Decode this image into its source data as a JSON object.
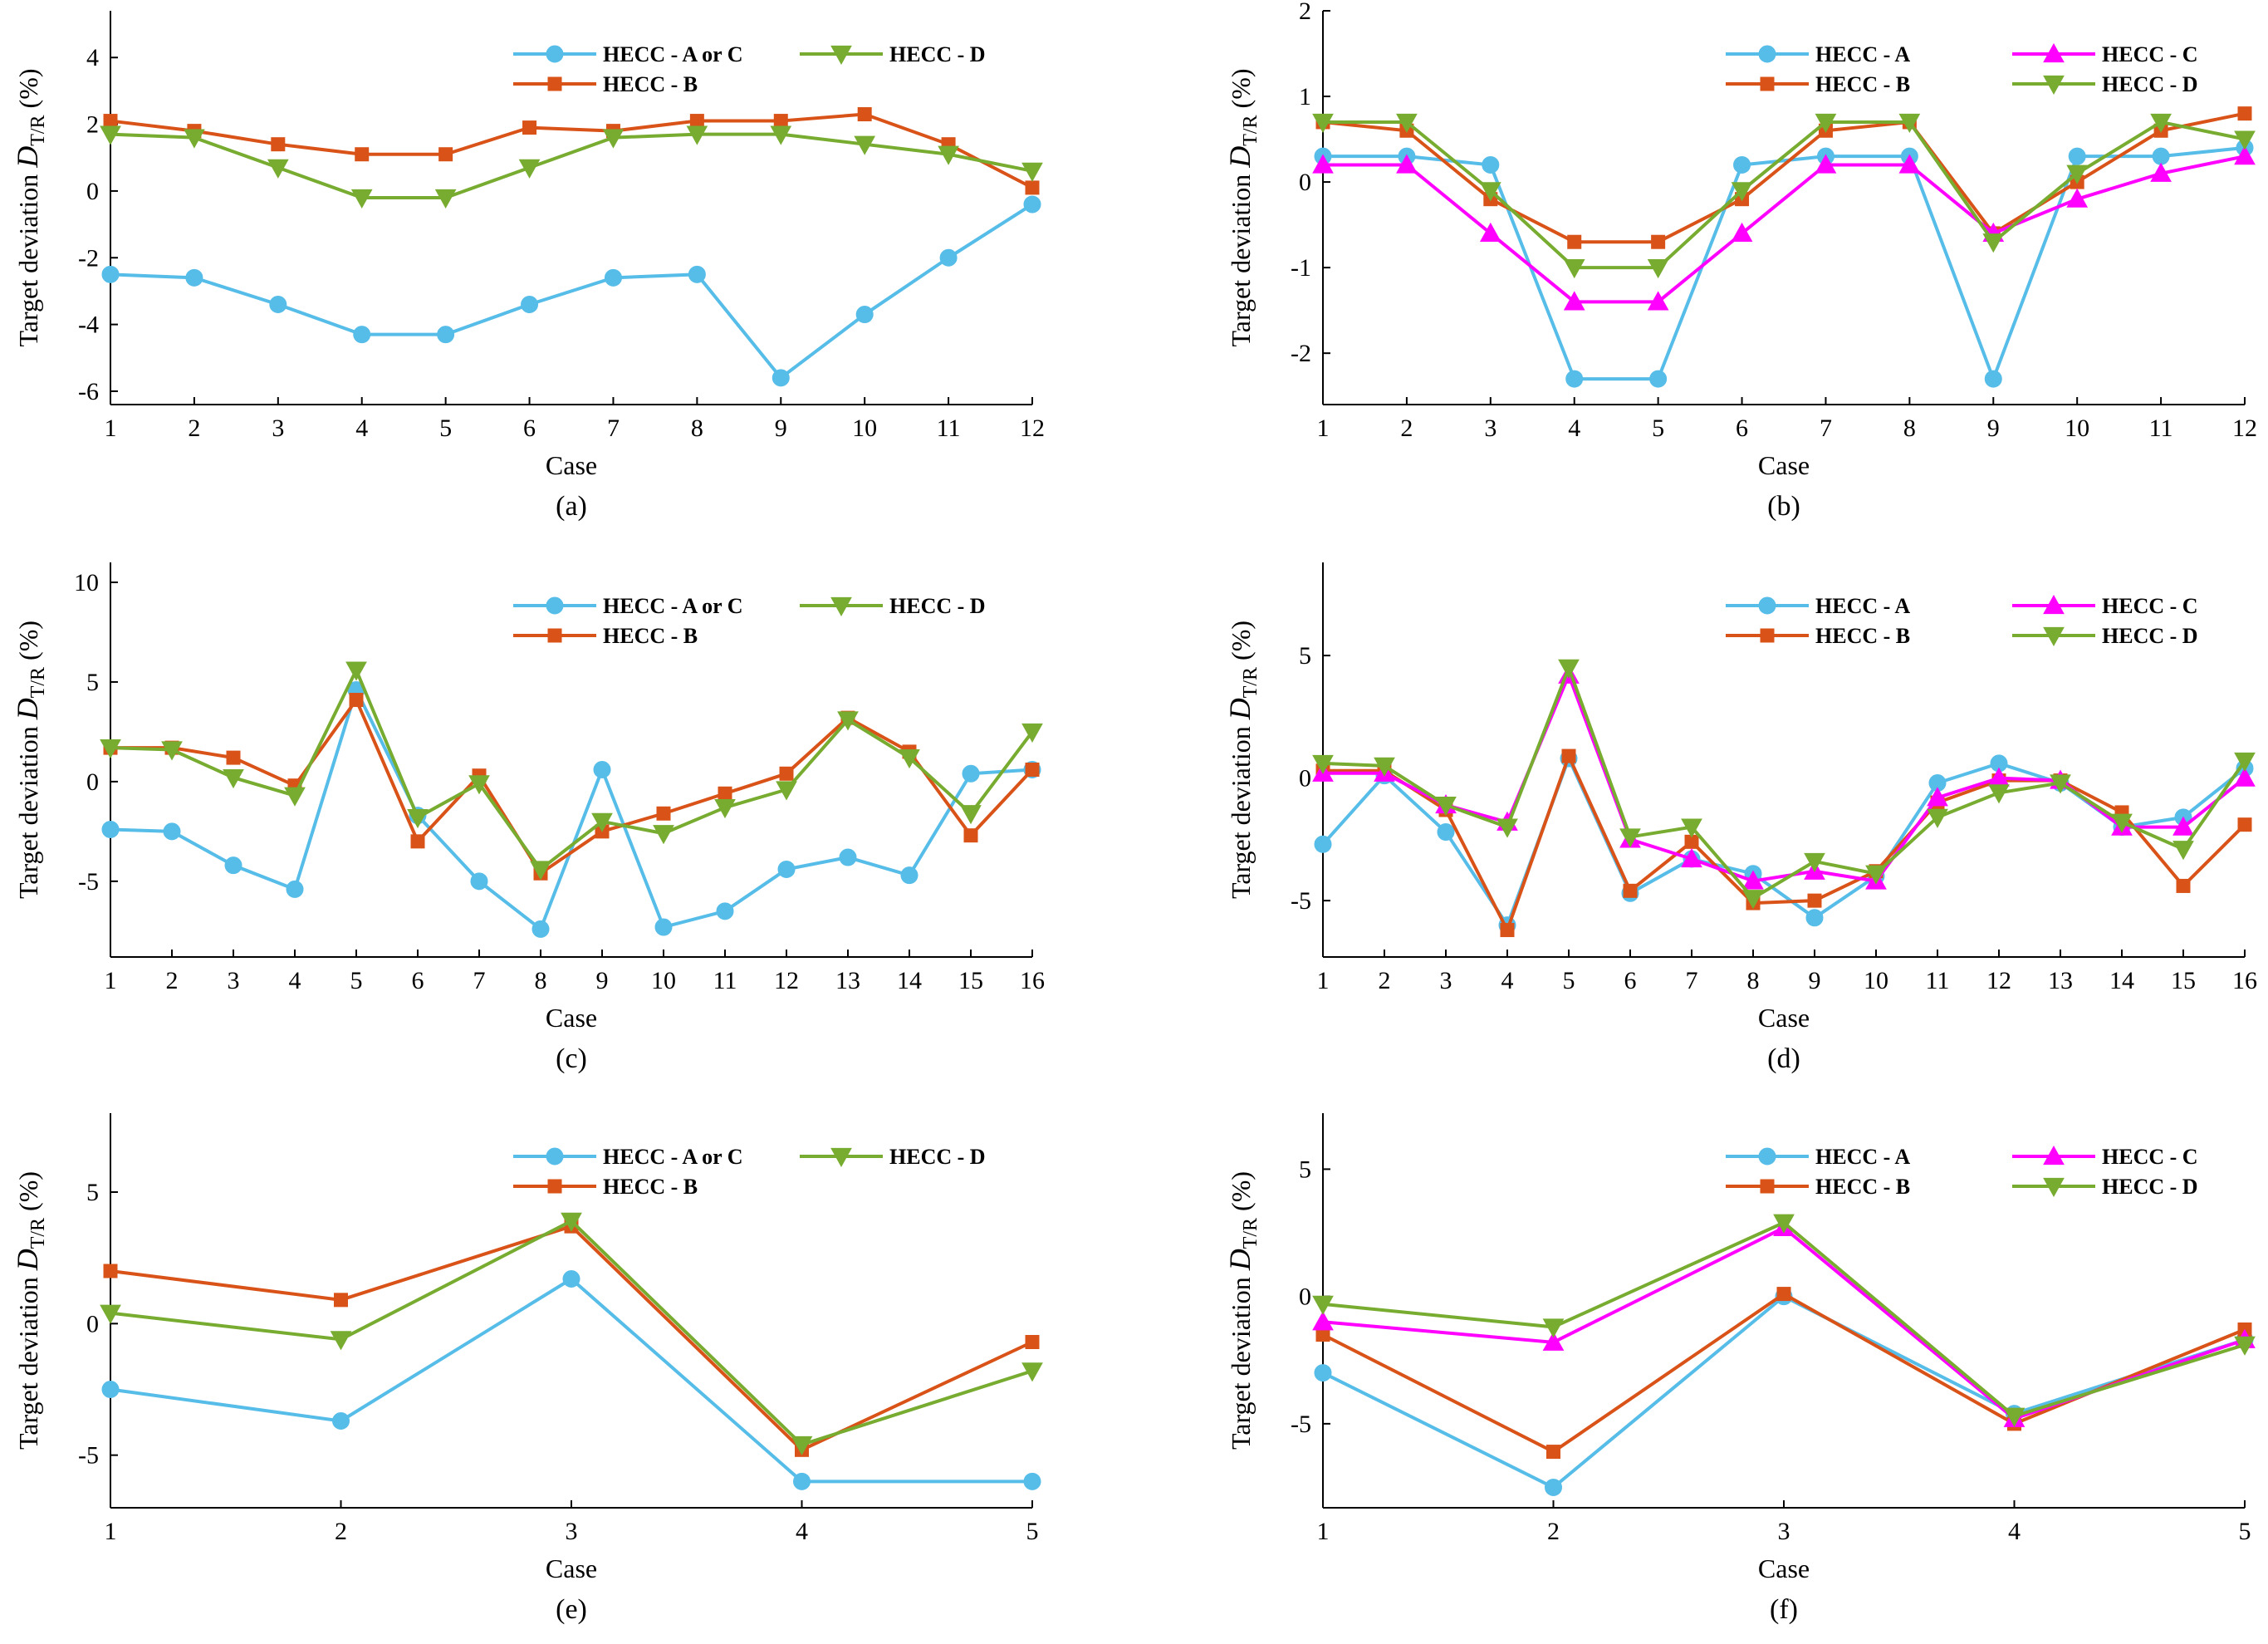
{
  "colors": {
    "A": "#56BCE8",
    "B": "#D95319",
    "C": "#FF00FF",
    "D": "#77AC30"
  },
  "ylabel_main": "Target deviation ",
  "ylabel_D": "D",
  "ylabel_sub": "T/R",
  "ylabel_unit": " (%)",
  "chart_data": [
    {
      "id": "a",
      "type": "line",
      "caption": "(a)",
      "xlabel": "Case",
      "categories": [
        "1",
        "2",
        "3",
        "4",
        "5",
        "6",
        "7",
        "8",
        "9",
        "10",
        "11",
        "12"
      ],
      "ylim": [
        -6.4,
        5.4
      ],
      "yticks": [
        -6,
        -4,
        -2,
        0,
        2,
        4
      ],
      "series": [
        {
          "name": "HECC - A or C",
          "key": "A",
          "marker": "circle",
          "values": [
            -2.5,
            -2.6,
            -3.4,
            -4.3,
            -4.3,
            -3.4,
            -2.6,
            -2.5,
            -5.6,
            -3.7,
            -2.0,
            -0.4
          ]
        },
        {
          "name": "HECC - B",
          "key": "B",
          "marker": "square",
          "values": [
            2.1,
            1.8,
            1.4,
            1.1,
            1.1,
            1.9,
            1.8,
            2.1,
            2.1,
            2.3,
            1.4,
            0.1
          ]
        },
        {
          "name": "HECC - D",
          "key": "D",
          "marker": "tri-down",
          "values": [
            1.7,
            1.6,
            0.7,
            -0.2,
            -0.2,
            0.7,
            1.6,
            1.7,
            1.7,
            1.4,
            1.1,
            0.6
          ]
        }
      ],
      "legend_rows": [
        [
          "HECC - A or C",
          "HECC - D"
        ],
        [
          "HECC - B"
        ]
      ]
    },
    {
      "id": "b",
      "type": "line",
      "caption": "(b)",
      "xlabel": "Case",
      "categories": [
        "1",
        "2",
        "3",
        "4",
        "5",
        "6",
        "7",
        "8",
        "9",
        "10",
        "11",
        "12"
      ],
      "ylim": [
        -2.6,
        2.0
      ],
      "yticks": [
        -2,
        -1,
        0,
        1,
        2
      ],
      "series": [
        {
          "name": "HECC - A",
          "key": "A",
          "marker": "circle",
          "values": [
            0.3,
            0.3,
            0.2,
            -2.3,
            -2.3,
            0.2,
            0.3,
            0.3,
            -2.3,
            0.3,
            0.3,
            0.4
          ]
        },
        {
          "name": "HECC - B",
          "key": "B",
          "marker": "square",
          "values": [
            0.7,
            0.6,
            -0.2,
            -0.7,
            -0.7,
            -0.2,
            0.6,
            0.7,
            -0.6,
            0.0,
            0.6,
            0.8
          ]
        },
        {
          "name": "HECC - C",
          "key": "C",
          "marker": "tri-up",
          "values": [
            0.2,
            0.2,
            -0.6,
            -1.4,
            -1.4,
            -0.6,
            0.2,
            0.2,
            -0.6,
            -0.2,
            0.1,
            0.3
          ]
        },
        {
          "name": "HECC - D",
          "key": "D",
          "marker": "tri-down",
          "values": [
            0.7,
            0.7,
            -0.1,
            -1.0,
            -1.0,
            -0.1,
            0.7,
            0.7,
            -0.7,
            0.1,
            0.7,
            0.5
          ]
        }
      ],
      "legend_rows": [
        [
          "HECC - A",
          "HECC - C"
        ],
        [
          "HECC - B",
          "HECC - D"
        ]
      ]
    },
    {
      "id": "c",
      "type": "line",
      "caption": "(c)",
      "xlabel": "Case",
      "categories": [
        "1",
        "2",
        "3",
        "4",
        "5",
        "6",
        "7",
        "8",
        "9",
        "10",
        "11",
        "12",
        "13",
        "14",
        "15",
        "16"
      ],
      "ylim": [
        -8.8,
        11.0
      ],
      "yticks": [
        -5,
        0,
        5,
        10
      ],
      "series": [
        {
          "name": "HECC - A or C",
          "key": "A",
          "marker": "circle",
          "values": [
            -2.4,
            -2.5,
            -4.2,
            -5.4,
            4.6,
            -1.7,
            -5.0,
            -7.4,
            0.6,
            -7.3,
            -6.5,
            -4.4,
            -3.8,
            -4.7,
            0.4,
            0.6
          ]
        },
        {
          "name": "HECC - B",
          "key": "B",
          "marker": "square",
          "values": [
            1.7,
            1.7,
            1.2,
            -0.2,
            4.1,
            -3.0,
            0.3,
            -4.6,
            -2.5,
            -1.6,
            -0.6,
            0.4,
            3.2,
            1.5,
            -2.7,
            0.6
          ]
        },
        {
          "name": "HECC - D",
          "key": "D",
          "marker": "tri-down",
          "values": [
            1.7,
            1.6,
            0.2,
            -0.7,
            5.6,
            -1.8,
            -0.1,
            -4.4,
            -2.0,
            -2.6,
            -1.3,
            -0.4,
            3.1,
            1.2,
            -1.6,
            2.5
          ]
        }
      ],
      "legend_rows": [
        [
          "HECC - A or C",
          "HECC - D"
        ],
        [
          "HECC - B"
        ]
      ]
    },
    {
      "id": "d",
      "type": "line",
      "caption": "(d)",
      "xlabel": "Case",
      "categories": [
        "1",
        "2",
        "3",
        "4",
        "5",
        "6",
        "7",
        "8",
        "9",
        "10",
        "11",
        "12",
        "13",
        "14",
        "15",
        "16"
      ],
      "ylim": [
        -7.3,
        8.8
      ],
      "yticks": [
        -5,
        0,
        5
      ],
      "series": [
        {
          "name": "HECC - A",
          "key": "A",
          "marker": "circle",
          "values": [
            -2.7,
            0.1,
            -2.2,
            -6.0,
            0.8,
            -4.7,
            -3.3,
            -3.9,
            -5.7,
            -4.0,
            -0.2,
            0.6,
            -0.2,
            -2.0,
            -1.6,
            0.4
          ]
        },
        {
          "name": "HECC - B",
          "key": "B",
          "marker": "square",
          "values": [
            0.3,
            0.3,
            -1.3,
            -6.2,
            0.9,
            -4.6,
            -2.6,
            -5.1,
            -5.0,
            -3.8,
            -1.0,
            -0.1,
            -0.1,
            -1.4,
            -4.4,
            -1.9
          ]
        },
        {
          "name": "HECC - C",
          "key": "C",
          "marker": "tri-up",
          "values": [
            0.2,
            0.2,
            -1.1,
            -1.8,
            4.2,
            -2.5,
            -3.3,
            -4.2,
            -3.8,
            -4.2,
            -0.8,
            0.0,
            -0.1,
            -2.0,
            -2.0,
            0.0
          ]
        },
        {
          "name": "HECC - D",
          "key": "D",
          "marker": "tri-down",
          "values": [
            0.6,
            0.5,
            -1.1,
            -2.0,
            4.5,
            -2.4,
            -2.0,
            -4.9,
            -3.4,
            -3.9,
            -1.6,
            -0.6,
            -0.2,
            -1.8,
            -2.9,
            0.7
          ]
        }
      ],
      "legend_rows": [
        [
          "HECC - A",
          "HECC - C"
        ],
        [
          "HECC - B",
          "HECC - D"
        ]
      ]
    },
    {
      "id": "e",
      "type": "line",
      "caption": "(e)",
      "xlabel": "Case",
      "categories": [
        "1",
        "2",
        "3",
        "4",
        "5"
      ],
      "ylim": [
        -7.0,
        8.0
      ],
      "yticks": [
        -5,
        0,
        5
      ],
      "series": [
        {
          "name": "HECC - A or C",
          "key": "A",
          "marker": "circle",
          "values": [
            -2.5,
            -3.7,
            1.7,
            -6.0,
            -6.0
          ]
        },
        {
          "name": "HECC - B",
          "key": "B",
          "marker": "square",
          "values": [
            2.0,
            0.9,
            3.7,
            -4.8,
            -0.7
          ]
        },
        {
          "name": "HECC - D",
          "key": "D",
          "marker": "tri-down",
          "values": [
            0.4,
            -0.6,
            3.9,
            -4.6,
            -1.8
          ]
        }
      ],
      "legend_rows": [
        [
          "HECC - A or C",
          "HECC - D"
        ],
        [
          "HECC - B"
        ]
      ]
    },
    {
      "id": "f",
      "type": "line",
      "caption": "(f)",
      "xlabel": "Case",
      "categories": [
        "1",
        "2",
        "3",
        "4",
        "5"
      ],
      "ylim": [
        -8.3,
        7.2
      ],
      "yticks": [
        -5,
        0,
        5
      ],
      "series": [
        {
          "name": "HECC - A",
          "key": "A",
          "marker": "circle",
          "values": [
            -3.0,
            -7.5,
            0.0,
            -4.6,
            -1.7
          ]
        },
        {
          "name": "HECC - B",
          "key": "B",
          "marker": "square",
          "values": [
            -1.5,
            -6.1,
            0.1,
            -5.0,
            -1.3
          ]
        },
        {
          "name": "HECC - C",
          "key": "C",
          "marker": "tri-up",
          "values": [
            -1.0,
            -1.8,
            2.7,
            -4.8,
            -1.7
          ]
        },
        {
          "name": "HECC - D",
          "key": "D",
          "marker": "tri-down",
          "values": [
            -0.3,
            -1.2,
            2.9,
            -4.7,
            -1.9
          ]
        }
      ],
      "legend_rows": [
        [
          "HECC - A",
          "HECC - C"
        ],
        [
          "HECC - B",
          "HECC - D"
        ]
      ]
    }
  ]
}
